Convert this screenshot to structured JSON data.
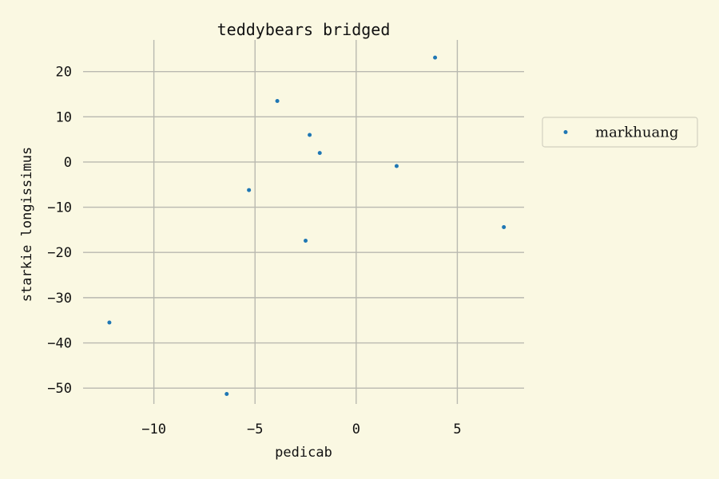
{
  "chart_data": {
    "type": "scatter",
    "title": "teddybears bridged",
    "xlabel": "pedicab",
    "ylabel": "starkie longissimus",
    "xlim": [
      -13.5,
      8.3
    ],
    "ylim": [
      -53.5,
      27
    ],
    "xticks": [
      -10,
      -5,
      0,
      5
    ],
    "yticks": [
      20,
      10,
      0,
      -10,
      -20,
      -30,
      -40,
      -50
    ],
    "grid": true,
    "legend_position": "outside-right",
    "series": [
      {
        "name": "markhuang",
        "color": "#1f77b4",
        "x": [
          -12.2,
          -6.4,
          -5.3,
          -3.9,
          -2.5,
          -2.3,
          -1.8,
          2.0,
          3.9,
          7.3
        ],
        "y": [
          -35.5,
          -51.3,
          -6.2,
          13.5,
          -17.4,
          6.0,
          2.0,
          -0.9,
          23.1,
          -14.4
        ]
      }
    ]
  },
  "colors": {
    "background": "#faf8e2",
    "grid": "#b9b9b0",
    "text": "#111111",
    "legend_border": "#d2d0c0"
  }
}
